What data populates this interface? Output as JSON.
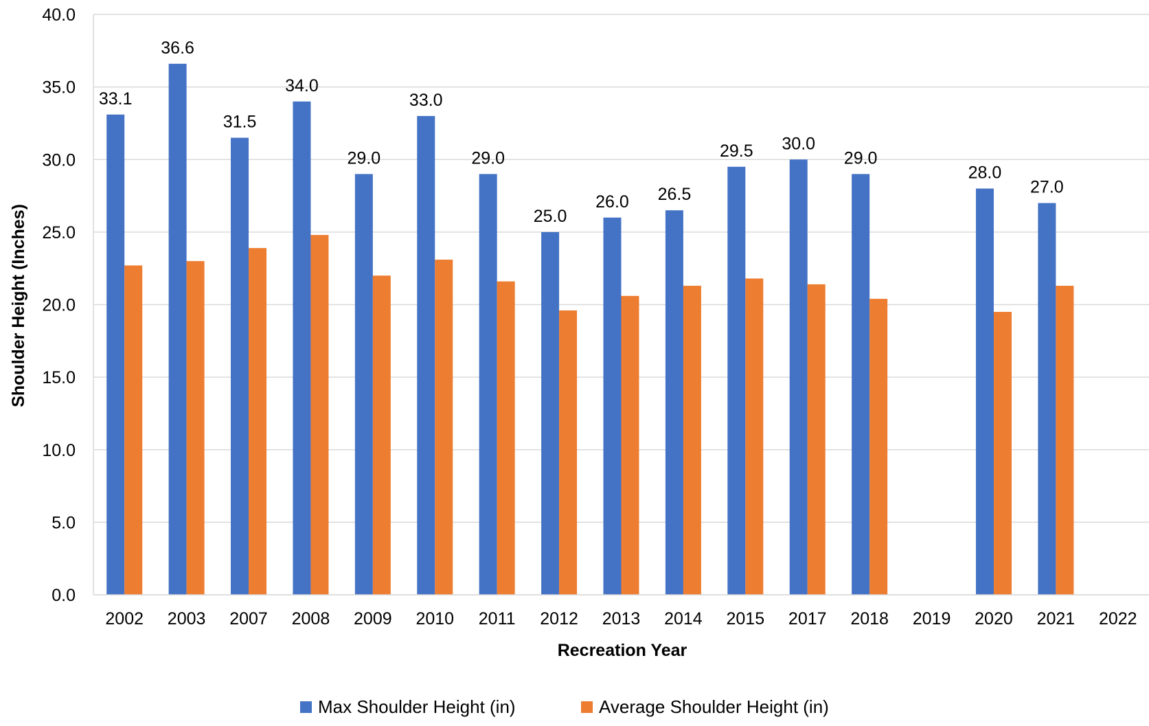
{
  "chart_data": {
    "type": "bar",
    "title": "",
    "xlabel": "Recreation Year",
    "ylabel": "Shoulder Height (Inches)",
    "ylim": [
      0,
      40
    ],
    "yticks": [
      "0.0",
      "5.0",
      "10.0",
      "15.0",
      "20.0",
      "25.0",
      "30.0",
      "35.0",
      "40.0"
    ],
    "grid": true,
    "legend_position": "bottom",
    "categories": [
      "2002",
      "2003",
      "2007",
      "2008",
      "2009",
      "2010",
      "2011",
      "2012",
      "2013",
      "2014",
      "2015",
      "2017",
      "2018",
      "2019",
      "2020",
      "2021",
      "2022"
    ],
    "series": [
      {
        "name": "Max Shoulder Height (in)",
        "color": "#4472C4",
        "values": [
          33.1,
          36.6,
          31.5,
          34.0,
          29.0,
          33.0,
          29.0,
          25.0,
          26.0,
          26.5,
          29.5,
          30.0,
          29.0,
          null,
          28.0,
          27.0,
          null
        ],
        "data_labels": [
          "33.1",
          "36.6",
          "31.5",
          "34.0",
          "29.0",
          "33.0",
          "29.0",
          "25.0",
          "26.0",
          "26.5",
          "29.5",
          "30.0",
          "29.0",
          "",
          "28.0",
          "27.0",
          ""
        ]
      },
      {
        "name": "Average Shoulder Height (in)",
        "color": "#ED7D31",
        "values": [
          22.7,
          23.0,
          23.9,
          24.8,
          22.0,
          23.1,
          21.6,
          19.6,
          20.6,
          21.3,
          21.8,
          21.4,
          20.4,
          null,
          19.5,
          21.3,
          null
        ]
      }
    ]
  }
}
